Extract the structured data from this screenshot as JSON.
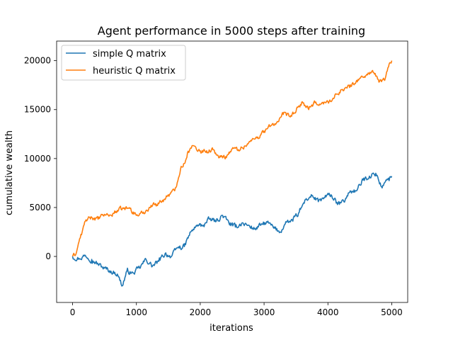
{
  "chart_data": {
    "type": "line",
    "title": "Agent performance in 5000 steps after training",
    "xlabel": "iterations",
    "ylabel": "cumulative wealth",
    "xlim": [
      -250,
      5250
    ],
    "ylim": [
      -4700,
      22000
    ],
    "xticks": [
      0,
      1000,
      2000,
      3000,
      4000,
      5000
    ],
    "yticks": [
      0,
      5000,
      10000,
      15000,
      20000
    ],
    "grid": false,
    "legend_position": "upper-left",
    "series": [
      {
        "name": "simple Q matrix",
        "color": "#1f77b4",
        "x": [
          0,
          100,
          200,
          300,
          400,
          500,
          600,
          700,
          780,
          850,
          950,
          1050,
          1150,
          1250,
          1350,
          1450,
          1550,
          1650,
          1750,
          1850,
          1950,
          2050,
          2150,
          2250,
          2350,
          2450,
          2550,
          2650,
          2750,
          2850,
          2950,
          3050,
          3150,
          3250,
          3350,
          3450,
          3550,
          3650,
          3750,
          3850,
          3950,
          4050,
          4150,
          4250,
          4350,
          4450,
          4550,
          4650,
          4750,
          4850,
          4950,
          5000
        ],
        "y": [
          0,
          -200,
          100,
          -300,
          -800,
          -1200,
          -1500,
          -1800,
          -3000,
          -1500,
          -1700,
          -1200,
          -300,
          -1000,
          -500,
          300,
          0,
          900,
          1000,
          2500,
          3100,
          3200,
          3800,
          3600,
          4200,
          3400,
          3000,
          3400,
          3200,
          2800,
          3200,
          3500,
          2900,
          2500,
          3500,
          3600,
          4500,
          5800,
          6200,
          5600,
          6000,
          6300,
          5300,
          5600,
          6700,
          6700,
          7800,
          8200,
          8500,
          7000,
          8000,
          8200
        ]
      },
      {
        "name": "heuristic Q matrix",
        "color": "#ff7f0e",
        "x": [
          0,
          50,
          100,
          150,
          200,
          300,
          400,
          500,
          600,
          700,
          800,
          900,
          1000,
          1100,
          1200,
          1300,
          1400,
          1500,
          1600,
          1700,
          1750,
          1800,
          1900,
          2000,
          2100,
          2200,
          2300,
          2400,
          2500,
          2600,
          2700,
          2800,
          2900,
          3000,
          3100,
          3200,
          3300,
          3400,
          3500,
          3600,
          3700,
          3800,
          3900,
          4000,
          4100,
          4200,
          4300,
          4400,
          4500,
          4600,
          4700,
          4800,
          4900,
          4970,
          5000
        ],
        "y": [
          0,
          200,
          1500,
          2500,
          3600,
          4000,
          3800,
          4300,
          4200,
          4700,
          4900,
          4900,
          4200,
          4400,
          5000,
          5400,
          5600,
          6300,
          6700,
          9200,
          9500,
          10600,
          11300,
          10800,
          10800,
          10900,
          10100,
          10200,
          11000,
          10900,
          11300,
          11800,
          12200,
          12800,
          13300,
          13700,
          14500,
          14300,
          14800,
          15800,
          15000,
          15700,
          15600,
          15800,
          16200,
          17000,
          17200,
          17600,
          18200,
          18500,
          19000,
          17800,
          18200,
          19800,
          20000
        ]
      }
    ]
  }
}
